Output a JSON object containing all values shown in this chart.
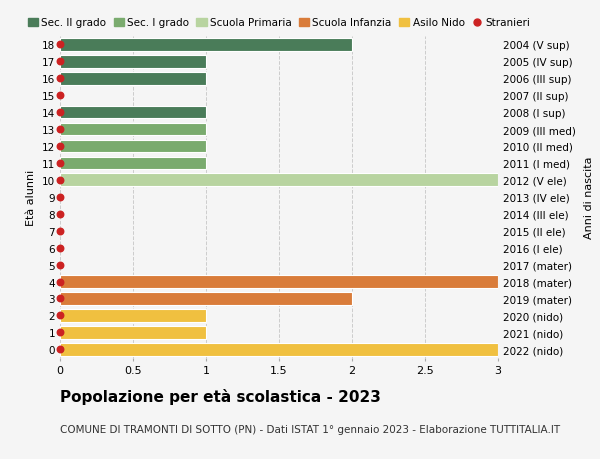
{
  "title": "Popolazione per età scolastica - 2023",
  "subtitle": "COMUNE DI TRAMONTI DI SOTTO (PN) - Dati ISTAT 1° gennaio 2023 - Elaborazione TUTTITALIA.IT",
  "ylabel_left": "Età alunni",
  "ylabel_right": "Anni di nascita",
  "xlim": [
    0,
    3.0
  ],
  "xticks": [
    0,
    0.5,
    1.0,
    1.5,
    2.0,
    2.5,
    3.0
  ],
  "background_color": "#f5f5f5",
  "legend_labels": [
    "Sec. II grado",
    "Sec. I grado",
    "Scuola Primaria",
    "Scuola Infanzia",
    "Asilo Nido",
    "Stranieri"
  ],
  "legend_colors": [
    "#4a7c59",
    "#7aab6e",
    "#b8d4a0",
    "#d97c3a",
    "#f0c040",
    "#cc2222"
  ],
  "rows": [
    {
      "y": 18,
      "label": "2004 (V sup)",
      "value": 2.0,
      "color": "#4a7c59"
    },
    {
      "y": 17,
      "label": "2005 (IV sup)",
      "value": 1.0,
      "color": "#4a7c59"
    },
    {
      "y": 16,
      "label": "2006 (III sup)",
      "value": 1.0,
      "color": "#4a7c59"
    },
    {
      "y": 15,
      "label": "2007 (II sup)",
      "value": 0.0,
      "color": "#4a7c59"
    },
    {
      "y": 14,
      "label": "2008 (I sup)",
      "value": 1.0,
      "color": "#4a7c59"
    },
    {
      "y": 13,
      "label": "2009 (III med)",
      "value": 1.0,
      "color": "#7aab6e"
    },
    {
      "y": 12,
      "label": "2010 (II med)",
      "value": 1.0,
      "color": "#7aab6e"
    },
    {
      "y": 11,
      "label": "2011 (I med)",
      "value": 1.0,
      "color": "#7aab6e"
    },
    {
      "y": 10,
      "label": "2012 (V ele)",
      "value": 3.0,
      "color": "#b8d4a0"
    },
    {
      "y": 9,
      "label": "2013 (IV ele)",
      "value": 0.0,
      "color": "#b8d4a0"
    },
    {
      "y": 8,
      "label": "2014 (III ele)",
      "value": 0.0,
      "color": "#b8d4a0"
    },
    {
      "y": 7,
      "label": "2015 (II ele)",
      "value": 0.0,
      "color": "#b8d4a0"
    },
    {
      "y": 6,
      "label": "2016 (I ele)",
      "value": 0.0,
      "color": "#b8d4a0"
    },
    {
      "y": 5,
      "label": "2017 (mater)",
      "value": 0.0,
      "color": "#d97c3a"
    },
    {
      "y": 4,
      "label": "2018 (mater)",
      "value": 3.0,
      "color": "#d97c3a"
    },
    {
      "y": 3,
      "label": "2019 (mater)",
      "value": 2.0,
      "color": "#d97c3a"
    },
    {
      "y": 2,
      "label": "2020 (nido)",
      "value": 1.0,
      "color": "#f0c040"
    },
    {
      "y": 1,
      "label": "2021 (nido)",
      "value": 1.0,
      "color": "#f0c040"
    },
    {
      "y": 0,
      "label": "2022 (nido)",
      "value": 3.0,
      "color": "#f0c040"
    }
  ],
  "stranieri_dots": [
    18,
    17,
    16,
    15,
    14,
    13,
    12,
    11,
    10,
    9,
    8,
    7,
    6,
    5,
    4,
    3,
    2,
    1,
    0
  ],
  "dot_color": "#cc2222",
  "dot_size": 22,
  "grid_color": "#cccccc",
  "bar_height": 0.75,
  "ytick_fontsize": 7.5,
  "xtick_fontsize": 8,
  "title_fontsize": 11,
  "subtitle_fontsize": 7.5,
  "legend_fontsize": 7.5,
  "ylabel_fontsize": 8
}
